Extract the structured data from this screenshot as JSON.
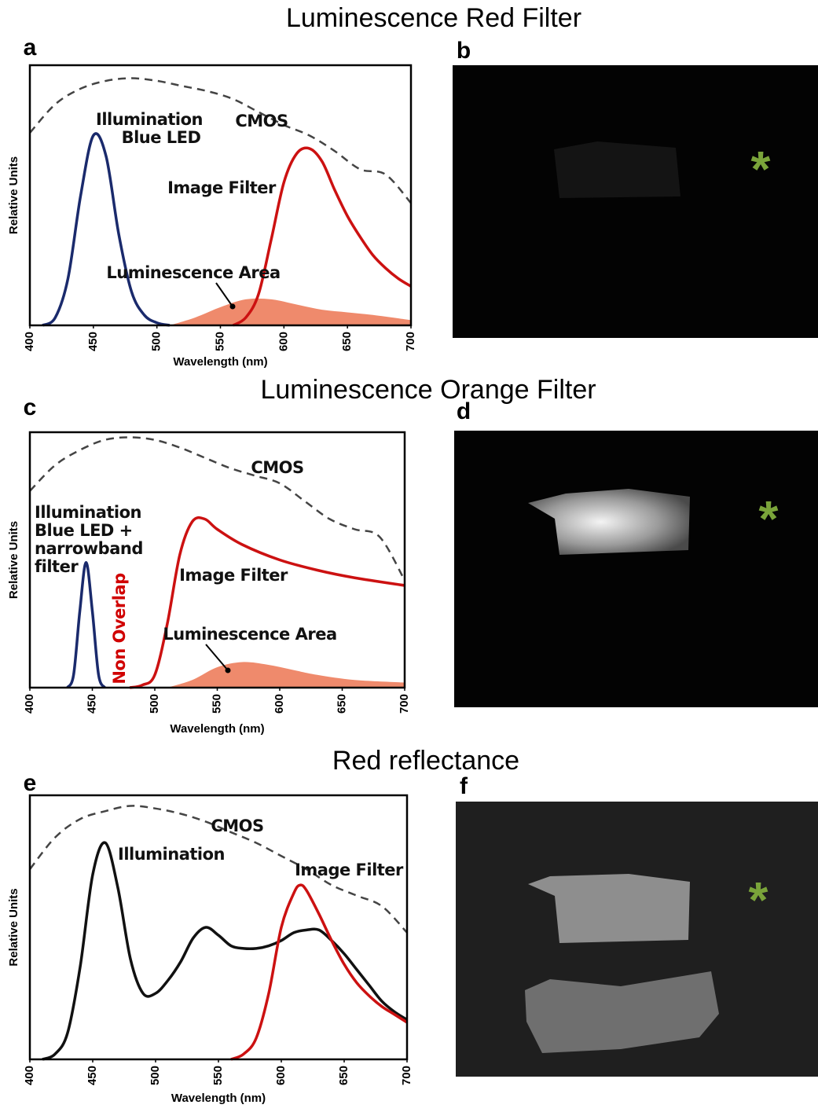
{
  "chart_data": [
    {
      "type": "line",
      "title": "Luminescence Red Filter",
      "panel_label": "a",
      "xlabel": "Wavelength (nm)",
      "ylabel": "Relative Units",
      "xlim": [
        400,
        700
      ],
      "xticks": [
        400,
        450,
        500,
        550,
        600,
        650,
        700
      ],
      "ylim": [
        0,
        1
      ],
      "series": [
        {
          "kind": "area",
          "color": "#ef8a6c",
          "x": [
            510,
            530,
            550,
            570,
            590,
            610,
            630,
            650,
            670,
            700
          ],
          "values": [
            0,
            0.03,
            0.07,
            0.1,
            0.1,
            0.08,
            0.06,
            0.05,
            0.04,
            0.02
          ]
        },
        {
          "kind": "line",
          "dash": true,
          "color": "#444444",
          "x": [
            400,
            420,
            440,
            460,
            480,
            500,
            520,
            540,
            560,
            580,
            600,
            620,
            640,
            660,
            680,
            700
          ],
          "values": [
            0.74,
            0.85,
            0.91,
            0.94,
            0.95,
            0.94,
            0.92,
            0.9,
            0.87,
            0.82,
            0.77,
            0.73,
            0.67,
            0.6,
            0.58,
            0.47
          ]
        },
        {
          "kind": "line",
          "color": "#1a2a6c",
          "x": [
            410,
            420,
            430,
            440,
            450,
            460,
            470,
            480,
            490,
            500,
            510
          ],
          "values": [
            0,
            0.03,
            0.18,
            0.5,
            0.73,
            0.65,
            0.35,
            0.13,
            0.04,
            0.01,
            0
          ]
        },
        {
          "kind": "line",
          "color": "#cc1111",
          "x": [
            560,
            570,
            580,
            590,
            600,
            610,
            620,
            630,
            640,
            650,
            660,
            670,
            680,
            690,
            700
          ],
          "values": [
            0,
            0.03,
            0.12,
            0.33,
            0.55,
            0.66,
            0.68,
            0.63,
            0.52,
            0.42,
            0.34,
            0.27,
            0.22,
            0.18,
            0.15
          ]
        }
      ],
      "annotations": [
        {
          "text": "Illumination"
        },
        {
          "text": "Blue LED"
        },
        {
          "text": "CMOS"
        },
        {
          "text": "Image Filter"
        },
        {
          "text": "Luminescence Area"
        }
      ]
    },
    {
      "type": "line",
      "title": "Luminescence Orange Filter",
      "panel_label": "c",
      "xlabel": "Wavelength (nm)",
      "ylabel": "Relative Units",
      "xlim": [
        400,
        700
      ],
      "xticks": [
        400,
        450,
        500,
        550,
        600,
        650,
        700
      ],
      "ylim": [
        0,
        1
      ],
      "series": [
        {
          "kind": "area",
          "color": "#ef8a6c",
          "x": [
            510,
            530,
            550,
            570,
            590,
            610,
            630,
            660,
            700
          ],
          "values": [
            0,
            0.03,
            0.08,
            0.1,
            0.09,
            0.07,
            0.05,
            0.03,
            0.02
          ]
        },
        {
          "kind": "line",
          "dash": true,
          "color": "#444444",
          "x": [
            400,
            420,
            440,
            460,
            480,
            500,
            520,
            540,
            560,
            580,
            600,
            620,
            640,
            660,
            680,
            700
          ],
          "values": [
            0.77,
            0.87,
            0.93,
            0.97,
            0.98,
            0.97,
            0.94,
            0.9,
            0.86,
            0.83,
            0.8,
            0.73,
            0.66,
            0.62,
            0.59,
            0.42
          ]
        },
        {
          "kind": "line",
          "color": "#1a2a6c",
          "x": [
            430,
            435,
            440,
            445,
            450,
            455,
            460
          ],
          "values": [
            0,
            0.05,
            0.3,
            0.49,
            0.3,
            0.05,
            0
          ]
        },
        {
          "kind": "line",
          "color": "#cc1111",
          "x": [
            480,
            490,
            500,
            510,
            520,
            530,
            540,
            550,
            570,
            600,
            630,
            660,
            700
          ],
          "values": [
            0,
            0.01,
            0.05,
            0.25,
            0.52,
            0.65,
            0.66,
            0.62,
            0.56,
            0.5,
            0.46,
            0.43,
            0.4
          ]
        }
      ],
      "annotations": [
        {
          "text": "Illumination"
        },
        {
          "text": "Blue LED +"
        },
        {
          "text": "narrowband"
        },
        {
          "text": "filter"
        },
        {
          "text": "CMOS"
        },
        {
          "text": "Image Filter"
        },
        {
          "text": "Luminescence Area"
        },
        {
          "text": "Non Overlap",
          "color": "#d00000"
        }
      ]
    },
    {
      "type": "line",
      "title": "Red reflectance",
      "panel_label": "e",
      "xlabel": "Wavelength (nm)",
      "ylabel": "Relative Units",
      "xlim": [
        400,
        700
      ],
      "xticks": [
        400,
        450,
        500,
        550,
        600,
        650,
        700
      ],
      "ylim": [
        0,
        1
      ],
      "series": [
        {
          "kind": "line",
          "dash": true,
          "color": "#444444",
          "x": [
            400,
            420,
            440,
            460,
            480,
            500,
            520,
            540,
            560,
            580,
            600,
            620,
            640,
            660,
            680,
            700
          ],
          "values": [
            0.72,
            0.84,
            0.91,
            0.94,
            0.96,
            0.95,
            0.93,
            0.9,
            0.86,
            0.82,
            0.77,
            0.72,
            0.66,
            0.62,
            0.58,
            0.48
          ]
        },
        {
          "kind": "line",
          "color": "#111111",
          "x": [
            410,
            420,
            430,
            440,
            450,
            460,
            470,
            480,
            490,
            500,
            510,
            520,
            530,
            540,
            550,
            560,
            570,
            580,
            590,
            600,
            610,
            620,
            630,
            640,
            650,
            660,
            670,
            680,
            690,
            700
          ],
          "values": [
            0,
            0.02,
            0.1,
            0.35,
            0.7,
            0.82,
            0.65,
            0.38,
            0.25,
            0.25,
            0.3,
            0.37,
            0.46,
            0.5,
            0.47,
            0.43,
            0.42,
            0.42,
            0.43,
            0.45,
            0.48,
            0.49,
            0.49,
            0.45,
            0.4,
            0.34,
            0.28,
            0.22,
            0.18,
            0.15
          ]
        },
        {
          "kind": "line",
          "color": "#cc1111",
          "x": [
            560,
            570,
            580,
            590,
            600,
            610,
            615,
            620,
            630,
            640,
            650,
            660,
            670,
            680,
            690,
            700
          ],
          "values": [
            0,
            0.02,
            0.08,
            0.25,
            0.5,
            0.63,
            0.66,
            0.64,
            0.55,
            0.45,
            0.36,
            0.29,
            0.24,
            0.2,
            0.17,
            0.14
          ]
        }
      ],
      "annotations": [
        {
          "text": "CMOS"
        },
        {
          "text": "Illumination"
        },
        {
          "text": "Image Filter"
        }
      ]
    }
  ],
  "photos": [
    {
      "panel_label": "b",
      "marker": "*"
    },
    {
      "panel_label": "d",
      "marker": "*"
    },
    {
      "panel_label": "f",
      "marker": "*"
    }
  ]
}
